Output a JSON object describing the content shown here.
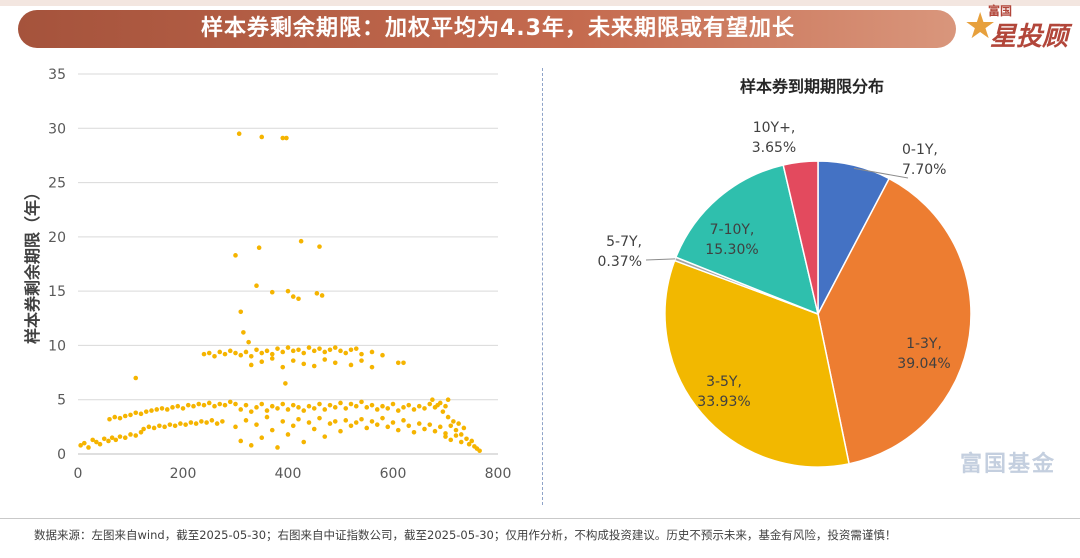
{
  "header": {
    "title": "样本券剩余期限：加权平均为4.3年，未来期限或有望加长",
    "logo_small": "富国",
    "logo_main": "星投顾"
  },
  "watermark": "富国基金",
  "footer": {
    "note": "数据来源：左图来自wind，截至2025-05-30；右图来自中证指数公司，截至2025-05-30；仅用作分析，不构成投资建议。历史不预示未来，基金有风险，投资需谨慎！"
  },
  "chart_data": [
    {
      "type": "scatter",
      "title": "",
      "xlabel": "",
      "ylabel": "样本券剩余期限（年）",
      "xlim": [
        0,
        800
      ],
      "ylim": [
        0,
        35
      ],
      "xticks": [
        "0",
        "200",
        "400",
        "600",
        "800"
      ],
      "yticks": [
        "0",
        "5",
        "10",
        "15",
        "20",
        "25",
        "30",
        "35"
      ],
      "grid": "horizontal",
      "color": "#f5b400",
      "points": [
        [
          5,
          0.8
        ],
        [
          12,
          1.0
        ],
        [
          20,
          0.6
        ],
        [
          28,
          1.3
        ],
        [
          35,
          1.1
        ],
        [
          42,
          0.9
        ],
        [
          50,
          1.4
        ],
        [
          58,
          1.2
        ],
        [
          65,
          1.5
        ],
        [
          72,
          1.3
        ],
        [
          80,
          1.6
        ],
        [
          90,
          1.5
        ],
        [
          100,
          1.8
        ],
        [
          110,
          1.7
        ],
        [
          120,
          2.0
        ],
        [
          60,
          3.2
        ],
        [
          70,
          3.4
        ],
        [
          80,
          3.3
        ],
        [
          90,
          3.5
        ],
        [
          100,
          3.6
        ],
        [
          110,
          3.8
        ],
        [
          120,
          3.7
        ],
        [
          130,
          3.9
        ],
        [
          140,
          4.0
        ],
        [
          150,
          4.1
        ],
        [
          160,
          4.2
        ],
        [
          170,
          4.1
        ],
        [
          180,
          4.3
        ],
        [
          190,
          4.4
        ],
        [
          200,
          4.2
        ],
        [
          210,
          4.5
        ],
        [
          220,
          4.4
        ],
        [
          230,
          4.6
        ],
        [
          240,
          4.5
        ],
        [
          250,
          4.7
        ],
        [
          260,
          4.4
        ],
        [
          270,
          4.6
        ],
        [
          280,
          4.5
        ],
        [
          290,
          4.8
        ],
        [
          300,
          4.6
        ],
        [
          125,
          2.3
        ],
        [
          135,
          2.5
        ],
        [
          145,
          2.4
        ],
        [
          155,
          2.6
        ],
        [
          165,
          2.5
        ],
        [
          175,
          2.7
        ],
        [
          185,
          2.6
        ],
        [
          195,
          2.8
        ],
        [
          205,
          2.7
        ],
        [
          215,
          2.9
        ],
        [
          225,
          2.8
        ],
        [
          235,
          3.0
        ],
        [
          245,
          2.9
        ],
        [
          255,
          3.1
        ],
        [
          265,
          2.8
        ],
        [
          275,
          3.0
        ],
        [
          110,
          7.0
        ],
        [
          240,
          9.2
        ],
        [
          250,
          9.3
        ],
        [
          260,
          9.0
        ],
        [
          270,
          9.4
        ],
        [
          280,
          9.2
        ],
        [
          290,
          9.5
        ],
        [
          300,
          9.3
        ],
        [
          310,
          9.1
        ],
        [
          320,
          9.4
        ],
        [
          330,
          9.0
        ],
        [
          340,
          9.6
        ],
        [
          350,
          9.3
        ],
        [
          360,
          9.5
        ],
        [
          370,
          9.2
        ],
        [
          380,
          9.7
        ],
        [
          390,
          9.4
        ],
        [
          400,
          9.8
        ],
        [
          410,
          9.5
        ],
        [
          420,
          9.6
        ],
        [
          430,
          9.3
        ],
        [
          440,
          9.8
        ],
        [
          450,
          9.5
        ],
        [
          460,
          9.7
        ],
        [
          470,
          9.4
        ],
        [
          480,
          9.6
        ],
        [
          490,
          9.8
        ],
        [
          500,
          9.5
        ],
        [
          510,
          9.3
        ],
        [
          520,
          9.6
        ],
        [
          530,
          9.7
        ],
        [
          540,
          9.2
        ],
        [
          560,
          9.4
        ],
        [
          580,
          9.1
        ],
        [
          610,
          8.4
        ],
        [
          620,
          8.4
        ],
        [
          330,
          8.2
        ],
        [
          350,
          8.5
        ],
        [
          370,
          8.8
        ],
        [
          390,
          8.0
        ],
        [
          410,
          8.6
        ],
        [
          430,
          8.3
        ],
        [
          450,
          8.1
        ],
        [
          470,
          8.7
        ],
        [
          490,
          8.4
        ],
        [
          520,
          8.2
        ],
        [
          540,
          8.6
        ],
        [
          560,
          8.0
        ],
        [
          395,
          6.5
        ],
        [
          310,
          4.1
        ],
        [
          320,
          4.5
        ],
        [
          330,
          3.9
        ],
        [
          340,
          4.3
        ],
        [
          350,
          4.6
        ],
        [
          360,
          4.0
        ],
        [
          370,
          4.4
        ],
        [
          380,
          4.2
        ],
        [
          390,
          4.6
        ],
        [
          400,
          4.1
        ],
        [
          410,
          4.5
        ],
        [
          420,
          4.3
        ],
        [
          430,
          4.0
        ],
        [
          440,
          4.4
        ],
        [
          450,
          4.2
        ],
        [
          460,
          4.6
        ],
        [
          470,
          4.1
        ],
        [
          480,
          4.5
        ],
        [
          490,
          4.3
        ],
        [
          500,
          4.7
        ],
        [
          510,
          4.2
        ],
        [
          520,
          4.6
        ],
        [
          530,
          4.4
        ],
        [
          540,
          4.8
        ],
        [
          550,
          4.3
        ],
        [
          560,
          4.5
        ],
        [
          570,
          4.1
        ],
        [
          580,
          4.4
        ],
        [
          590,
          4.2
        ],
        [
          600,
          4.6
        ],
        [
          610,
          4.0
        ],
        [
          620,
          4.3
        ],
        [
          630,
          4.5
        ],
        [
          640,
          4.1
        ],
        [
          650,
          4.4
        ],
        [
          660,
          4.2
        ],
        [
          670,
          4.6
        ],
        [
          680,
          4.3
        ],
        [
          690,
          4.7
        ],
        [
          700,
          4.4
        ],
        [
          300,
          2.5
        ],
        [
          310,
          1.2
        ],
        [
          320,
          3.1
        ],
        [
          330,
          0.8
        ],
        [
          340,
          2.7
        ],
        [
          350,
          1.5
        ],
        [
          360,
          3.4
        ],
        [
          370,
          2.2
        ],
        [
          380,
          0.6
        ],
        [
          390,
          3.0
        ],
        [
          400,
          1.8
        ],
        [
          410,
          2.6
        ],
        [
          420,
          3.2
        ],
        [
          430,
          1.1
        ],
        [
          440,
          2.9
        ],
        [
          450,
          2.3
        ],
        [
          460,
          3.3
        ],
        [
          470,
          1.6
        ],
        [
          480,
          2.8
        ],
        [
          490,
          3.0
        ],
        [
          500,
          2.1
        ],
        [
          510,
          3.1
        ],
        [
          520,
          2.6
        ],
        [
          530,
          2.9
        ],
        [
          540,
          3.2
        ],
        [
          550,
          2.4
        ],
        [
          560,
          3.0
        ],
        [
          570,
          2.7
        ],
        [
          580,
          3.3
        ],
        [
          590,
          2.5
        ],
        [
          600,
          2.9
        ],
        [
          610,
          2.2
        ],
        [
          620,
          3.1
        ],
        [
          630,
          2.6
        ],
        [
          640,
          2.0
        ],
        [
          650,
          2.8
        ],
        [
          660,
          2.3
        ],
        [
          670,
          2.7
        ],
        [
          680,
          2.1
        ],
        [
          690,
          2.5
        ],
        [
          700,
          1.9
        ],
        [
          710,
          2.6
        ],
        [
          720,
          2.2
        ],
        [
          730,
          1.8
        ],
        [
          700,
          1.6
        ],
        [
          710,
          1.3
        ],
        [
          720,
          1.7
        ],
        [
          730,
          1.1
        ],
        [
          740,
          1.4
        ],
        [
          745,
          0.9
        ],
        [
          750,
          1.2
        ],
        [
          755,
          0.7
        ],
        [
          760,
          0.5
        ],
        [
          765,
          0.3
        ],
        [
          735,
          2.4
        ],
        [
          725,
          2.8
        ],
        [
          715,
          3.0
        ],
        [
          705,
          3.4
        ],
        [
          695,
          3.9
        ],
        [
          685,
          4.5
        ],
        [
          675,
          5.0
        ],
        [
          705,
          5.0
        ],
        [
          307,
          29.5
        ],
        [
          350,
          29.2
        ],
        [
          390,
          29.1
        ],
        [
          397,
          29.1
        ],
        [
          300,
          18.3
        ],
        [
          345,
          19.0
        ],
        [
          425,
          19.6
        ],
        [
          460,
          19.1
        ],
        [
          340,
          15.5
        ],
        [
          370,
          14.9
        ],
        [
          400,
          15.0
        ],
        [
          410,
          14.5
        ],
        [
          420,
          14.3
        ],
        [
          455,
          14.8
        ],
        [
          465,
          14.6
        ],
        [
          310,
          13.1
        ],
        [
          315,
          11.2
        ],
        [
          325,
          10.3
        ]
      ]
    },
    {
      "type": "pie",
      "title": "样本券到期期限分布",
      "slices": [
        {
          "label": "0-1Y",
          "value": 7.7,
          "text": "7.70%",
          "color": "#4472c4"
        },
        {
          "label": "1-3Y",
          "value": 39.04,
          "text": "39.04%",
          "color": "#ed7d31"
        },
        {
          "label": "3-5Y",
          "value": 33.93,
          "text": "33.93%",
          "color": "#f2b800"
        },
        {
          "label": "5-7Y",
          "value": 0.37,
          "text": "0.37%",
          "color": "#a5a5a5"
        },
        {
          "label": "7-10Y",
          "value": 15.3,
          "text": "15.30%",
          "color": "#2fbfad"
        },
        {
          "label": "10Y+",
          "value": 3.65,
          "text": "3.65%",
          "color": "#e34a5e"
        }
      ]
    }
  ]
}
